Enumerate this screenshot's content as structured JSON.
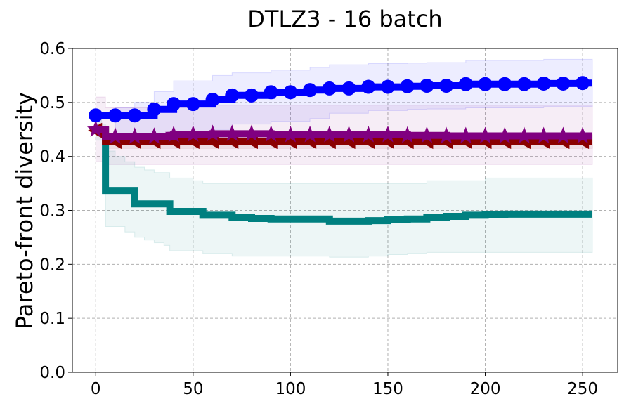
{
  "chart_data": {
    "type": "line",
    "title": "DTLZ3 - 16 batch",
    "xlabel": "",
    "ylabel": "Pareto-front diversity",
    "xlim": [
      -12,
      268
    ],
    "ylim": [
      0.0,
      0.6
    ],
    "xticks": [
      0,
      50,
      100,
      150,
      200,
      250
    ],
    "yticks": [
      0.0,
      0.1,
      0.2,
      0.3,
      0.4,
      0.5,
      0.6
    ],
    "ytick_labels": [
      "0.0",
      "0.1",
      "0.2",
      "0.3",
      "0.4",
      "0.5",
      "0.6"
    ],
    "xtick_labels": [
      "0",
      "50",
      "100",
      "150",
      "200",
      "250"
    ],
    "grid": true,
    "series": [
      {
        "name": "blue-circle",
        "color": "#0000ff",
        "marker": "circle",
        "x": [
          0,
          10,
          20,
          30,
          40,
          50,
          60,
          70,
          80,
          90,
          100,
          110,
          120,
          130,
          140,
          150,
          160,
          170,
          180,
          190,
          200,
          210,
          220,
          230,
          240,
          250,
          255
        ],
        "values": [
          0.476,
          0.476,
          0.476,
          0.487,
          0.497,
          0.497,
          0.505,
          0.513,
          0.513,
          0.519,
          0.519,
          0.523,
          0.526,
          0.526,
          0.529,
          0.529,
          0.53,
          0.531,
          0.531,
          0.534,
          0.534,
          0.534,
          0.534,
          0.535,
          0.535,
          0.536,
          0.536
        ],
        "upper": [
          0.48,
          0.49,
          0.5,
          0.52,
          0.54,
          0.54,
          0.55,
          0.555,
          0.555,
          0.56,
          0.56,
          0.565,
          0.57,
          0.57,
          0.572,
          0.572,
          0.573,
          0.574,
          0.574,
          0.578,
          0.578,
          0.578,
          0.578,
          0.58,
          0.58,
          0.58,
          0.58
        ],
        "lower": [
          0.47,
          0.44,
          0.44,
          0.44,
          0.44,
          0.44,
          0.45,
          0.46,
          0.46,
          0.465,
          0.465,
          0.47,
          0.48,
          0.48,
          0.485,
          0.485,
          0.487,
          0.488,
          0.488,
          0.49,
          0.49,
          0.49,
          0.49,
          0.492,
          0.492,
          0.492,
          0.492
        ]
      },
      {
        "name": "purple-star",
        "color": "#800080",
        "marker": "star",
        "x": [
          0,
          5,
          10,
          20,
          30,
          40,
          50,
          60,
          70,
          80,
          90,
          100,
          110,
          120,
          130,
          140,
          150,
          160,
          170,
          180,
          190,
          200,
          210,
          220,
          230,
          240,
          250,
          255
        ],
        "values": [
          0.45,
          0.437,
          0.437,
          0.437,
          0.437,
          0.44,
          0.441,
          0.442,
          0.442,
          0.442,
          0.441,
          0.44,
          0.44,
          0.44,
          0.44,
          0.44,
          0.44,
          0.439,
          0.439,
          0.438,
          0.438,
          0.438,
          0.438,
          0.438,
          0.438,
          0.438,
          0.438,
          0.438
        ],
        "upper": [
          0.51,
          0.49,
          0.49,
          0.49,
          0.49,
          0.49,
          0.495,
          0.495,
          0.495,
          0.495,
          0.495,
          0.495,
          0.495,
          0.495,
          0.495,
          0.495,
          0.495,
          0.495,
          0.495,
          0.495,
          0.495,
          0.495,
          0.495,
          0.495,
          0.495,
          0.495,
          0.495,
          0.495
        ],
        "lower": [
          0.39,
          0.385,
          0.385,
          0.385,
          0.385,
          0.385,
          0.385,
          0.385,
          0.385,
          0.385,
          0.385,
          0.385,
          0.385,
          0.385,
          0.385,
          0.385,
          0.385,
          0.385,
          0.385,
          0.385,
          0.385,
          0.385,
          0.385,
          0.385,
          0.385,
          0.385,
          0.385,
          0.385
        ]
      },
      {
        "name": "darkred-triangle",
        "color": "#8b0000",
        "marker": "triangle-left",
        "x": [
          0,
          5,
          10,
          20,
          30,
          40,
          50,
          60,
          70,
          80,
          90,
          100,
          110,
          120,
          130,
          140,
          150,
          160,
          170,
          180,
          190,
          200,
          210,
          220,
          230,
          240,
          250,
          255
        ],
        "values": [
          0.448,
          0.428,
          0.428,
          0.428,
          0.428,
          0.428,
          0.428,
          0.428,
          0.428,
          0.428,
          0.428,
          0.428,
          0.428,
          0.428,
          0.428,
          0.428,
          0.428,
          0.428,
          0.428,
          0.428,
          0.428,
          0.428,
          0.428,
          0.428,
          0.428,
          0.428,
          0.428,
          0.428
        ],
        "upper": [
          0.45,
          0.44,
          0.44,
          0.44,
          0.44,
          0.44,
          0.44,
          0.44,
          0.44,
          0.44,
          0.44,
          0.44,
          0.44,
          0.44,
          0.44,
          0.44,
          0.44,
          0.44,
          0.44,
          0.44,
          0.44,
          0.44,
          0.44,
          0.44,
          0.44,
          0.44,
          0.44,
          0.44
        ],
        "lower": [
          0.445,
          0.415,
          0.415,
          0.415,
          0.415,
          0.415,
          0.415,
          0.415,
          0.415,
          0.415,
          0.415,
          0.415,
          0.415,
          0.415,
          0.415,
          0.415,
          0.415,
          0.415,
          0.415,
          0.415,
          0.415,
          0.415,
          0.415,
          0.415,
          0.415,
          0.415,
          0.415,
          0.415
        ]
      },
      {
        "name": "teal-line",
        "color": "#008080",
        "marker": "none",
        "x": [
          0,
          3,
          5,
          10,
          15,
          20,
          25,
          30,
          35,
          38,
          45,
          50,
          55,
          60,
          70,
          80,
          90,
          100,
          110,
          120,
          130,
          140,
          150,
          160,
          170,
          180,
          190,
          200,
          210,
          220,
          230,
          240,
          250,
          255
        ],
        "values": [
          0.45,
          0.45,
          0.337,
          0.337,
          0.337,
          0.312,
          0.312,
          0.312,
          0.312,
          0.298,
          0.298,
          0.298,
          0.291,
          0.291,
          0.287,
          0.285,
          0.284,
          0.284,
          0.284,
          0.28,
          0.28,
          0.281,
          0.283,
          0.284,
          0.287,
          0.289,
          0.291,
          0.292,
          0.293,
          0.293,
          0.293,
          0.293,
          0.293,
          0.293
        ],
        "upper": [
          0.47,
          0.46,
          0.41,
          0.4,
          0.39,
          0.38,
          0.375,
          0.37,
          0.37,
          0.36,
          0.36,
          0.355,
          0.35,
          0.35,
          0.35,
          0.35,
          0.35,
          0.35,
          0.35,
          0.35,
          0.35,
          0.35,
          0.35,
          0.35,
          0.355,
          0.355,
          0.355,
          0.36,
          0.36,
          0.36,
          0.36,
          0.36,
          0.36,
          0.36
        ],
        "lower": [
          0.43,
          0.43,
          0.27,
          0.27,
          0.26,
          0.25,
          0.245,
          0.24,
          0.235,
          0.225,
          0.225,
          0.225,
          0.22,
          0.22,
          0.215,
          0.215,
          0.215,
          0.215,
          0.215,
          0.213,
          0.213,
          0.215,
          0.218,
          0.22,
          0.222,
          0.222,
          0.222,
          0.222,
          0.222,
          0.222,
          0.222,
          0.222,
          0.222,
          0.222
        ]
      }
    ]
  }
}
